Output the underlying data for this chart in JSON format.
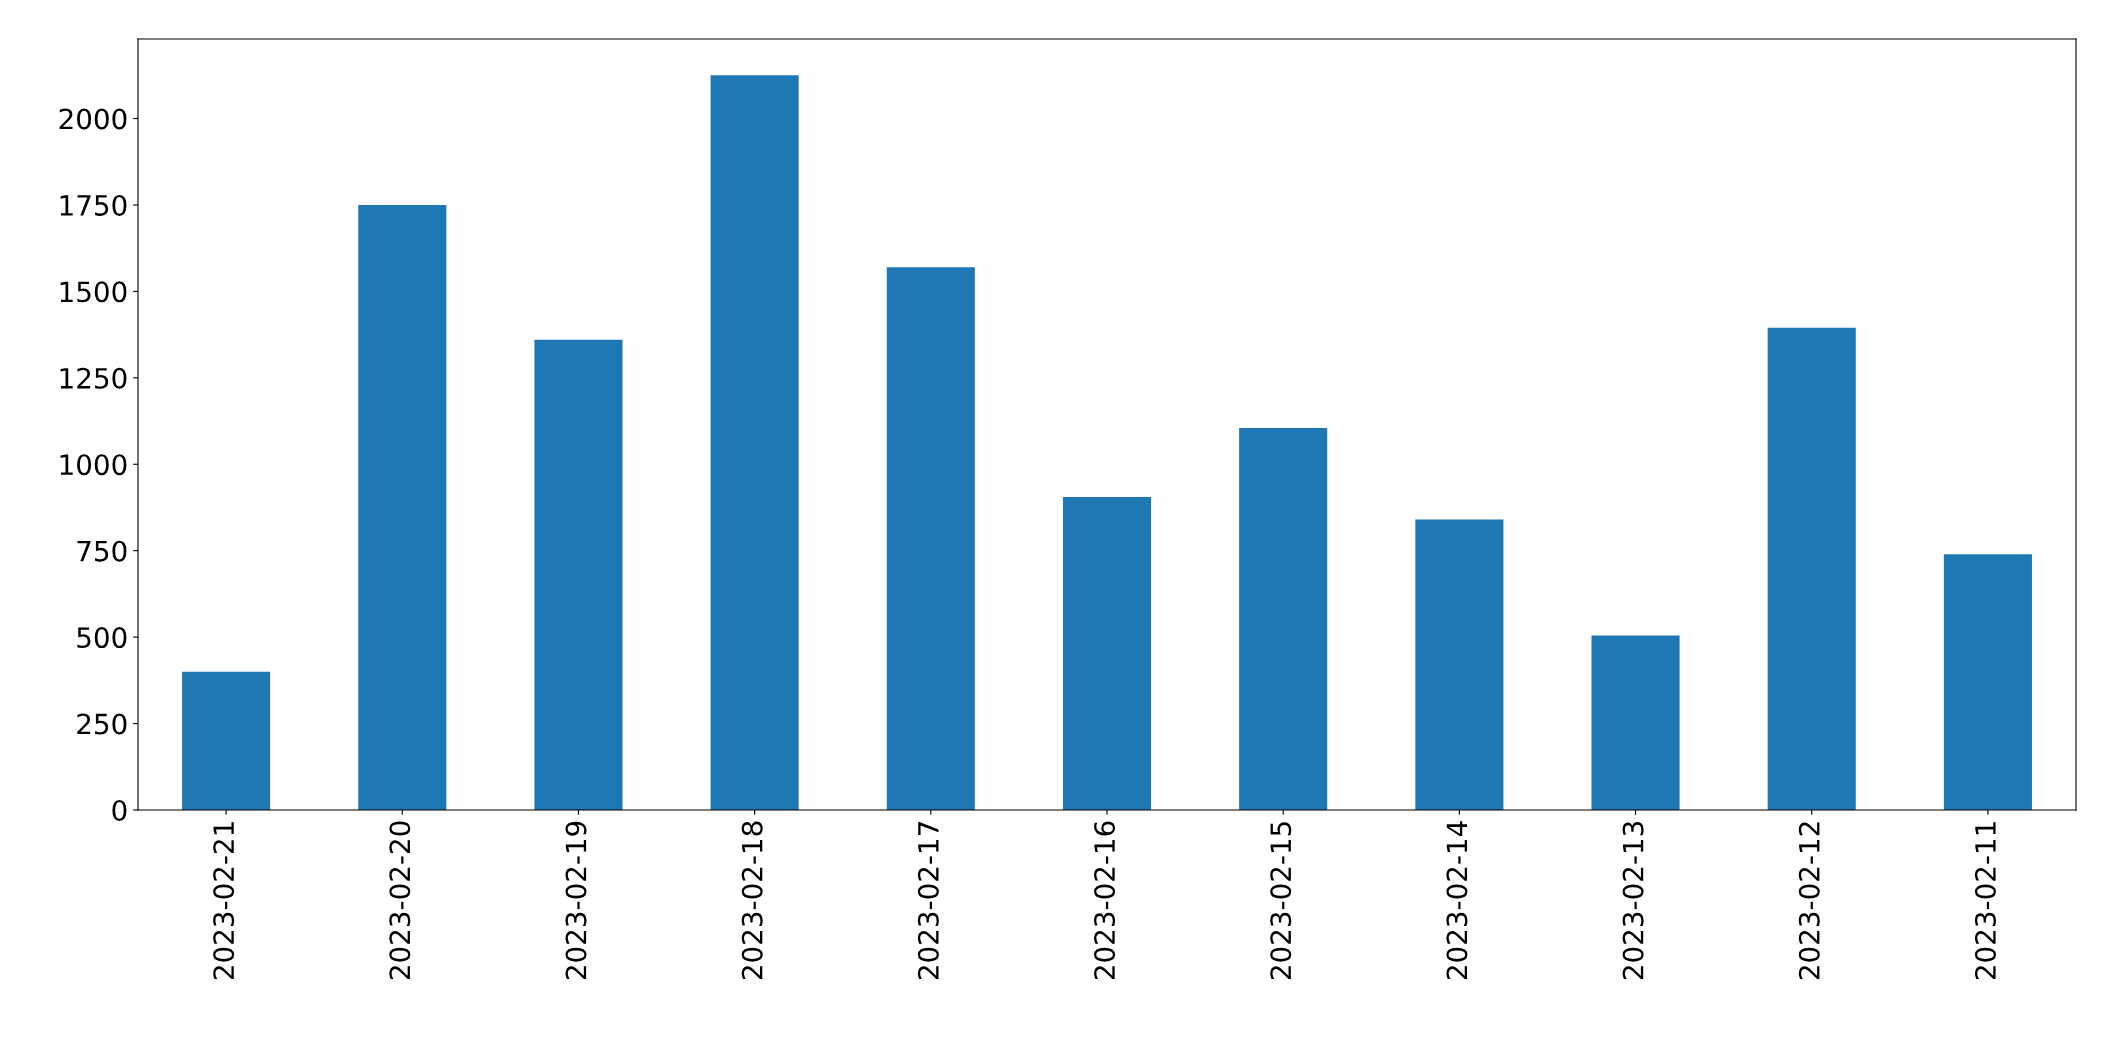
{
  "chart_data": {
    "type": "bar",
    "categories": [
      "2023-02-21",
      "2023-02-20",
      "2023-02-19",
      "2023-02-18",
      "2023-02-17",
      "2023-02-16",
      "2023-02-15",
      "2023-02-14",
      "2023-02-13",
      "2023-02-12",
      "2023-02-11"
    ],
    "values": [
      400,
      1750,
      1360,
      2125,
      1570,
      905,
      1105,
      840,
      505,
      1395,
      740
    ],
    "color": "#1f77b4",
    "ylim": [
      0,
      2230
    ],
    "yticks": [
      0,
      250,
      500,
      750,
      1000,
      1250,
      1500,
      1750,
      2000
    ],
    "grid": false,
    "legend": false
  }
}
